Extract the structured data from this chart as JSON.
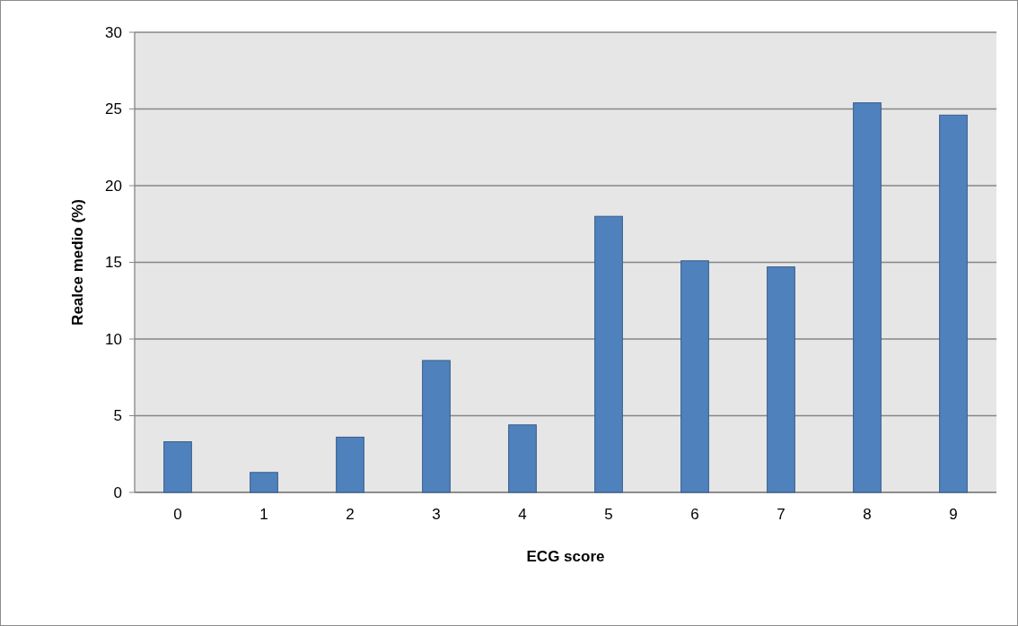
{
  "chart_data": {
    "type": "bar",
    "xlabel": "ECG score",
    "ylabel": "Realce medio (%)",
    "categories": [
      "0",
      "1",
      "2",
      "3",
      "4",
      "5",
      "6",
      "7",
      "8",
      "9"
    ],
    "values": [
      3.3,
      1.3,
      3.6,
      8.6,
      4.4,
      18.0,
      15.1,
      14.7,
      25.4,
      24.6
    ],
    "color": "#4f81bd",
    "ylim": [
      0,
      30
    ],
    "yticks": [
      0,
      5,
      10,
      15,
      20,
      25,
      30
    ],
    "grid": "y"
  }
}
